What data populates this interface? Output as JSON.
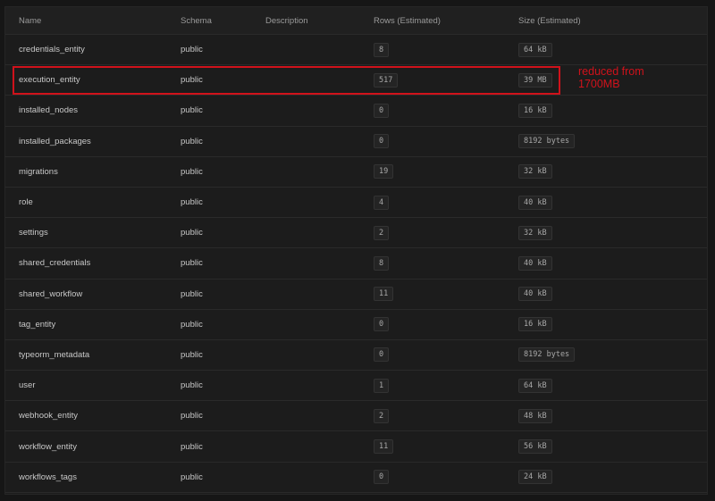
{
  "columns": {
    "name": "Name",
    "schema": "Schema",
    "description": "Description",
    "rows": "Rows (Estimated)",
    "size": "Size (Estimated)"
  },
  "rows": [
    {
      "name": "credentials_entity",
      "schema": "public",
      "description": "",
      "rows": "8",
      "size": "64 kB"
    },
    {
      "name": "execution_entity",
      "schema": "public",
      "description": "",
      "rows": "517",
      "size": "39 MB"
    },
    {
      "name": "installed_nodes",
      "schema": "public",
      "description": "",
      "rows": "0",
      "size": "16 kB"
    },
    {
      "name": "installed_packages",
      "schema": "public",
      "description": "",
      "rows": "0",
      "size": "8192 bytes"
    },
    {
      "name": "migrations",
      "schema": "public",
      "description": "",
      "rows": "19",
      "size": "32 kB"
    },
    {
      "name": "role",
      "schema": "public",
      "description": "",
      "rows": "4",
      "size": "40 kB"
    },
    {
      "name": "settings",
      "schema": "public",
      "description": "",
      "rows": "2",
      "size": "32 kB"
    },
    {
      "name": "shared_credentials",
      "schema": "public",
      "description": "",
      "rows": "8",
      "size": "40 kB"
    },
    {
      "name": "shared_workflow",
      "schema": "public",
      "description": "",
      "rows": "11",
      "size": "40 kB"
    },
    {
      "name": "tag_entity",
      "schema": "public",
      "description": "",
      "rows": "0",
      "size": "16 kB"
    },
    {
      "name": "typeorm_metadata",
      "schema": "public",
      "description": "",
      "rows": "0",
      "size": "8192 bytes"
    },
    {
      "name": "user",
      "schema": "public",
      "description": "",
      "rows": "1",
      "size": "64 kB"
    },
    {
      "name": "webhook_entity",
      "schema": "public",
      "description": "",
      "rows": "2",
      "size": "48 kB"
    },
    {
      "name": "workflow_entity",
      "schema": "public",
      "description": "",
      "rows": "11",
      "size": "56 kB"
    },
    {
      "name": "workflows_tags",
      "schema": "public",
      "description": "",
      "rows": "0",
      "size": "24 kB"
    }
  ],
  "annotation": {
    "text": "reduced from 1700MB",
    "color": "#d0121b"
  }
}
